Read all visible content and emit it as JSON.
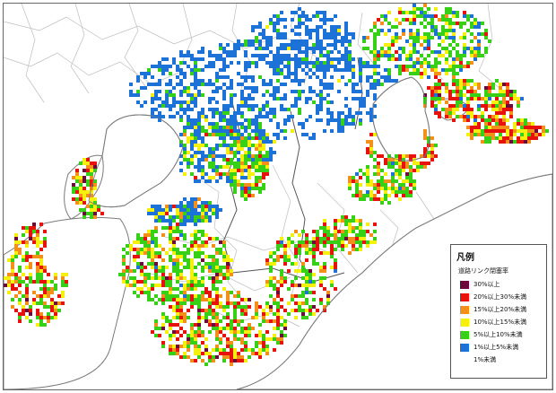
{
  "legend": {
    "title": "凡例",
    "subtitle": "道路リンク閉塞率",
    "items": [
      {
        "label": "30%以上",
        "color": "#6b0a3a"
      },
      {
        "label": "20%以上30%未満",
        "color": "#e8120c"
      },
      {
        "label": "15%以上20%未満",
        "color": "#f3901a"
      },
      {
        "label": "10%以上15%未満",
        "color": "#f5f00d"
      },
      {
        "label": "5%以上10%未満",
        "color": "#36d017"
      },
      {
        "label": "1%以上5%未満",
        "color": "#1d72d8"
      },
      {
        "label": "1%未満",
        "color": "#ffffff"
      }
    ]
  },
  "colors": {
    "sea": "#ffffff",
    "coast": "#7a7a7a",
    "boundary": "#bdbdbd",
    "prefecture_boundary": "#555555"
  }
}
